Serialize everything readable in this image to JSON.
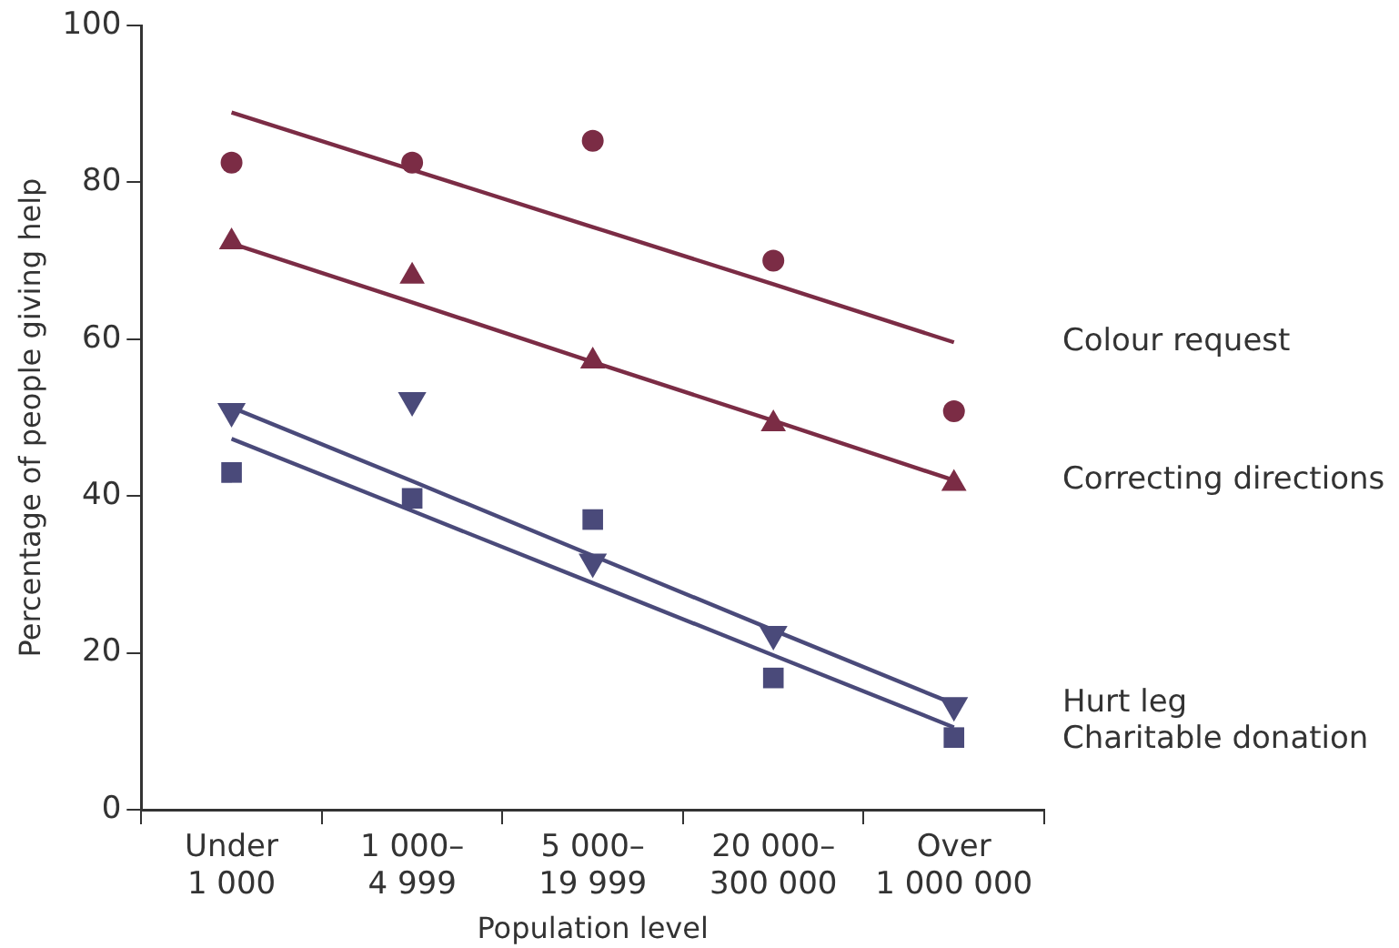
{
  "chart_data": {
    "type": "scatter",
    "xlabel": "Population level",
    "ylabel": "Percentage of people giving help",
    "categories": [
      "Under 1 000",
      "1 000–4 999",
      "5 000–19 999",
      "20 000–300 000",
      "Over 1 000 000"
    ],
    "ylim": [
      0,
      100
    ],
    "yticks": [
      0,
      20,
      40,
      60,
      80,
      100
    ],
    "grid": false,
    "legend": false,
    "series": [
      {
        "type": "scatter",
        "marker": "circle",
        "color": "#7b2c45",
        "values": [
          82.5,
          82.5,
          85.3,
          70.0,
          50.8
        ]
      },
      {
        "type": "scatter",
        "marker": "triangle",
        "color": "#7b2c45",
        "values": [
          72.4,
          68.0,
          57.2,
          49.2,
          41.6
        ]
      },
      {
        "type": "scatter",
        "marker": "triangle-down",
        "color": "#4a4a7a",
        "values": [
          50.8,
          52.2,
          31.6,
          22.4,
          13.3
        ]
      },
      {
        "type": "scatter",
        "marker": "square",
        "color": "#4a4a7a",
        "values": [
          43.0,
          39.7,
          37.0,
          16.8,
          9.2
        ]
      },
      {
        "type": "line",
        "name": "Colour request",
        "color": "#7b2c45",
        "marker": "none",
        "line_style": "solid",
        "values": [
          88.9,
          81.6,
          74.3,
          67.0,
          59.6
        ]
      },
      {
        "type": "line",
        "name": "Correcting directions",
        "color": "#7b2c45",
        "marker": "none",
        "line_style": "solid",
        "values": [
          72.2,
          64.7,
          57.1,
          49.6,
          42.0
        ]
      },
      {
        "type": "line",
        "name": "Hurt leg",
        "color": "#4a4a7a",
        "marker": "none",
        "line_style": "solid",
        "values": [
          51.3,
          41.9,
          32.4,
          22.9,
          13.5
        ]
      },
      {
        "type": "line",
        "name": "Charitable donation",
        "color": "#4a4a7a",
        "marker": "none",
        "line_style": "solid",
        "values": [
          47.3,
          38.1,
          28.9,
          19.7,
          10.5
        ]
      }
    ]
  }
}
